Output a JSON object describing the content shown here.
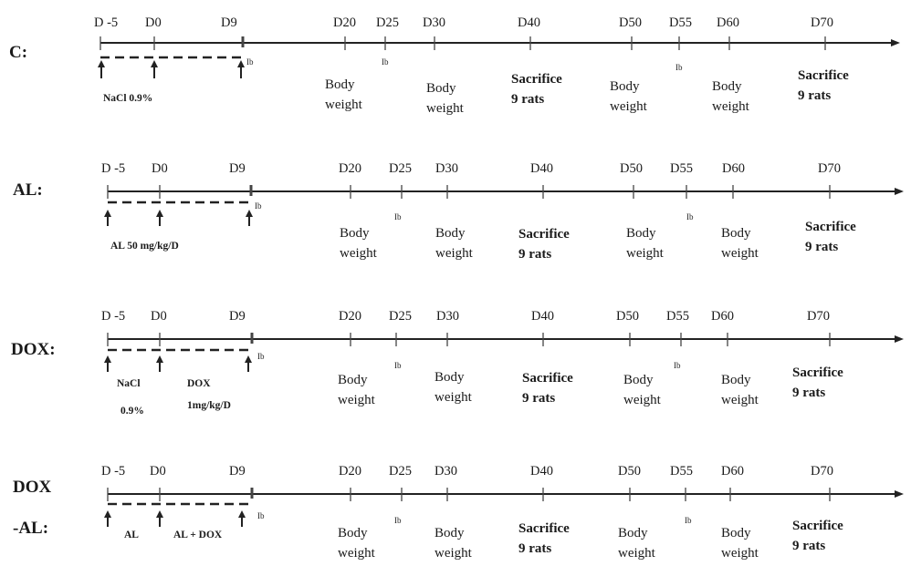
{
  "groups": [
    {
      "label": "C:",
      "days": [
        "D -5",
        "D0",
        "D9",
        "D20",
        "D25",
        "D30",
        "D40",
        "D50",
        "D55",
        "D60",
        "D70"
      ],
      "ib": [
        "Ib",
        "Ib",
        "Ib"
      ],
      "treatments": [
        "NaCl 0.9%"
      ],
      "events": [
        {
          "l1": "Body",
          "l2": "weight"
        },
        {
          "l1": "Body",
          "l2": "weight"
        },
        {
          "l1": "Sacrifice",
          "l2": "9 rats"
        },
        {
          "l1": "Body",
          "l2": "weight"
        },
        {
          "l1": "Body",
          "l2": "weight"
        },
        {
          "l1": "Sacrifice",
          "l2": "9 rats"
        }
      ]
    },
    {
      "label": "AL:",
      "days": [
        "D -5",
        "D0",
        "D9",
        "D20",
        "D25",
        "D30",
        "D40",
        "D50",
        "D55",
        "D60",
        "D70"
      ],
      "ib": [
        "Ib",
        "Ib",
        "Ib"
      ],
      "treatments": [
        "AL 50 mg/kg/D"
      ],
      "events": [
        {
          "l1": "Body",
          "l2": "weight"
        },
        {
          "l1": "Body",
          "l2": "weight"
        },
        {
          "l1": "Sacrifice",
          "l2": "9 rats"
        },
        {
          "l1": "Body",
          "l2": "weight"
        },
        {
          "l1": "Body",
          "l2": "weight"
        },
        {
          "l1": "Sacrifice",
          "l2": "9 rats"
        }
      ]
    },
    {
      "label": "DOX:",
      "days": [
        "D -5",
        "D0",
        "D9",
        "D20",
        "D25",
        "D30",
        "D40",
        "D50",
        "D55",
        "D60",
        "D70"
      ],
      "ib": [
        "Ib",
        "Ib",
        "Ib"
      ],
      "treatments": [
        "NaCl",
        "0.9%",
        "DOX",
        "1mg/kg/D"
      ],
      "events": [
        {
          "l1": "Body",
          "l2": "weight"
        },
        {
          "l1": "Body",
          "l2": "weight"
        },
        {
          "l1": "Sacrifice",
          "l2": "9 rats"
        },
        {
          "l1": "Body",
          "l2": "weight"
        },
        {
          "l1": "Body",
          "l2": "weight"
        },
        {
          "l1": "Sacrifice",
          "l2": "9 rats"
        }
      ]
    },
    {
      "label": "DOX",
      "label2": "-AL:",
      "days": [
        "D -5",
        "D0",
        "D9",
        "D20",
        "D25",
        "D30",
        "D40",
        "D50",
        "D55",
        "D60",
        "D70"
      ],
      "ib": [
        "Ib",
        "Ib",
        "Ib"
      ],
      "treatments": [
        "AL",
        "AL + DOX"
      ],
      "events": [
        {
          "l1": "Body",
          "l2": "weight"
        },
        {
          "l1": "Body",
          "l2": "weight"
        },
        {
          "l1": "Sacrifice",
          "l2": "9 rats"
        },
        {
          "l1": "Body",
          "l2": "weight"
        },
        {
          "l1": "Body",
          "l2": "weight"
        },
        {
          "l1": "Sacrifice",
          "l2": "9 rats"
        }
      ]
    }
  ]
}
